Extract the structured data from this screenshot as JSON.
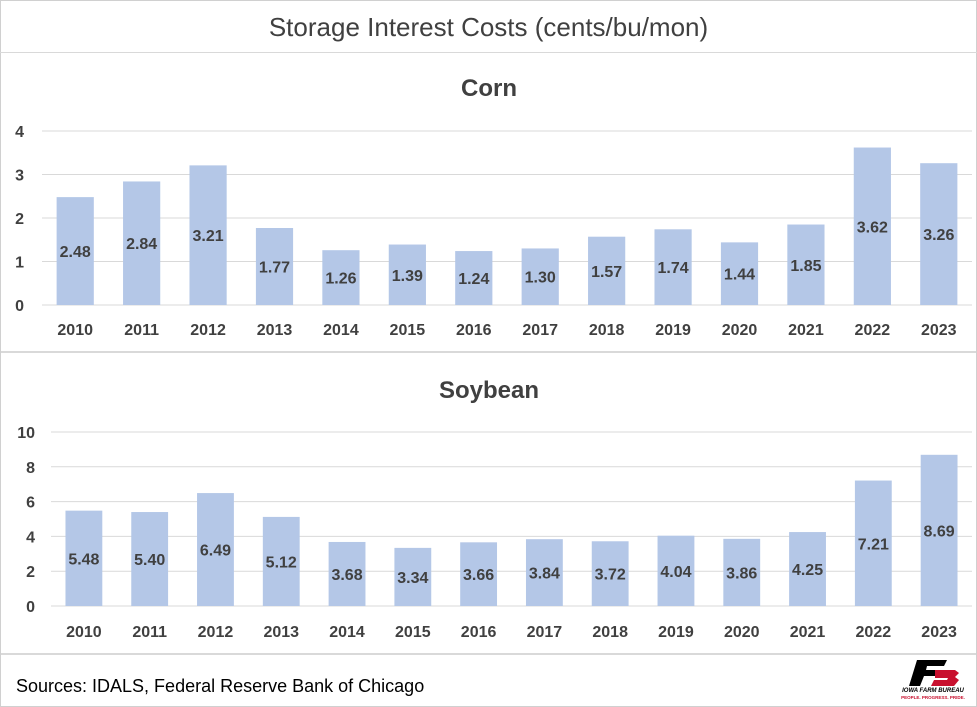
{
  "title": "Storage Interest Costs (cents/bu/mon)",
  "source": "Sources: IDALS, Federal Reserve  Bank of Chicago",
  "logo": {
    "name": "IOWA FARM BUREAU",
    "tagline": "PEOPLE. PROGRESS. PRIDE.",
    "icon": "fb-logo-icon"
  },
  "colors": {
    "bar": "#b4c7e7",
    "gridline": "#d9d9d9",
    "text": "#404040",
    "logo_red": "#c8102e"
  },
  "chart_data": [
    {
      "type": "bar",
      "title": "Corn",
      "categories": [
        "2010",
        "2011",
        "2012",
        "2013",
        "2014",
        "2015",
        "2016",
        "2017",
        "2018",
        "2019",
        "2020",
        "2021",
        "2022",
        "2023"
      ],
      "values": [
        2.48,
        2.84,
        3.21,
        1.77,
        1.26,
        1.39,
        1.24,
        1.3,
        1.57,
        1.74,
        1.44,
        1.85,
        3.62,
        3.26
      ],
      "data_labels": [
        "2.48",
        "2.84",
        "3.21",
        "1.77",
        "1.26",
        "1.39",
        "1.24",
        "1.30",
        "1.57",
        "1.74",
        "1.44",
        "1.85",
        "3.62",
        "3.26"
      ],
      "ylim": [
        0,
        4
      ],
      "yticks": [
        "0",
        "1",
        "2",
        "3",
        "4"
      ],
      "grid": true,
      "legend": "none"
    },
    {
      "type": "bar",
      "title": "Soybean",
      "categories": [
        "2010",
        "2011",
        "2012",
        "2013",
        "2014",
        "2015",
        "2016",
        "2017",
        "2018",
        "2019",
        "2020",
        "2021",
        "2022",
        "2023"
      ],
      "values": [
        5.48,
        5.4,
        6.49,
        5.12,
        3.68,
        3.34,
        3.66,
        3.84,
        3.72,
        4.04,
        3.86,
        4.25,
        7.21,
        8.69
      ],
      "data_labels": [
        "5.48",
        "5.40",
        "6.49",
        "5.12",
        "3.68",
        "3.34",
        "3.66",
        "3.84",
        "3.72",
        "4.04",
        "3.86",
        "4.25",
        "7.21",
        "8.69"
      ],
      "ylim": [
        0,
        10
      ],
      "yticks": [
        "0",
        "2",
        "4",
        "6",
        "8",
        "10"
      ],
      "grid": true,
      "legend": "none"
    }
  ]
}
